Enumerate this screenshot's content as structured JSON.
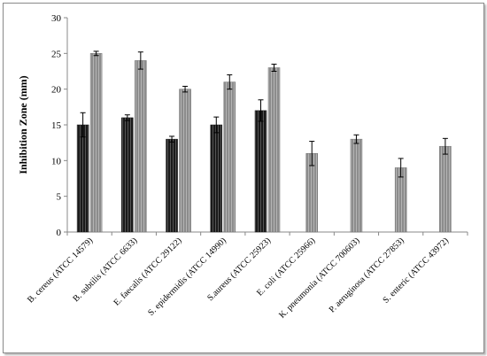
{
  "chart_data": {
    "type": "bar",
    "title": "",
    "xlabel": "",
    "ylabel": "Inhibition Zone (mm)",
    "ylim": [
      0,
      30
    ],
    "yticks": [
      0,
      5,
      10,
      15,
      20,
      25,
      30
    ],
    "grid": false,
    "categories": [
      "B. cereus (ATCC 14579)",
      "B. subtilis (ATCC 6633)",
      "E. faecalis (ATCC 29122)",
      "S. epidermidis (ATCC 14990)",
      "S.aureus (ATCC 25923)",
      "E. coli (ATCC 25966)",
      "K. pneumonia (ATCC 700603)",
      "P. aeruginosa (ATCC 27853)",
      "S. enteric (ATCC 43972)"
    ],
    "series": [
      {
        "color": "#1a1a1a",
        "values": [
          15,
          16,
          13,
          15,
          17,
          null,
          null,
          null,
          null
        ],
        "errors": [
          1.7,
          0.4,
          0.4,
          1.1,
          1.5,
          null,
          null,
          null,
          null
        ]
      },
      {
        "color": "#8c8c8c",
        "values": [
          25,
          24,
          20,
          21,
          23,
          11,
          13,
          9,
          12
        ],
        "errors": [
          0.3,
          1.2,
          0.4,
          1.0,
          0.5,
          1.7,
          0.6,
          1.3,
          1.1
        ]
      }
    ]
  }
}
